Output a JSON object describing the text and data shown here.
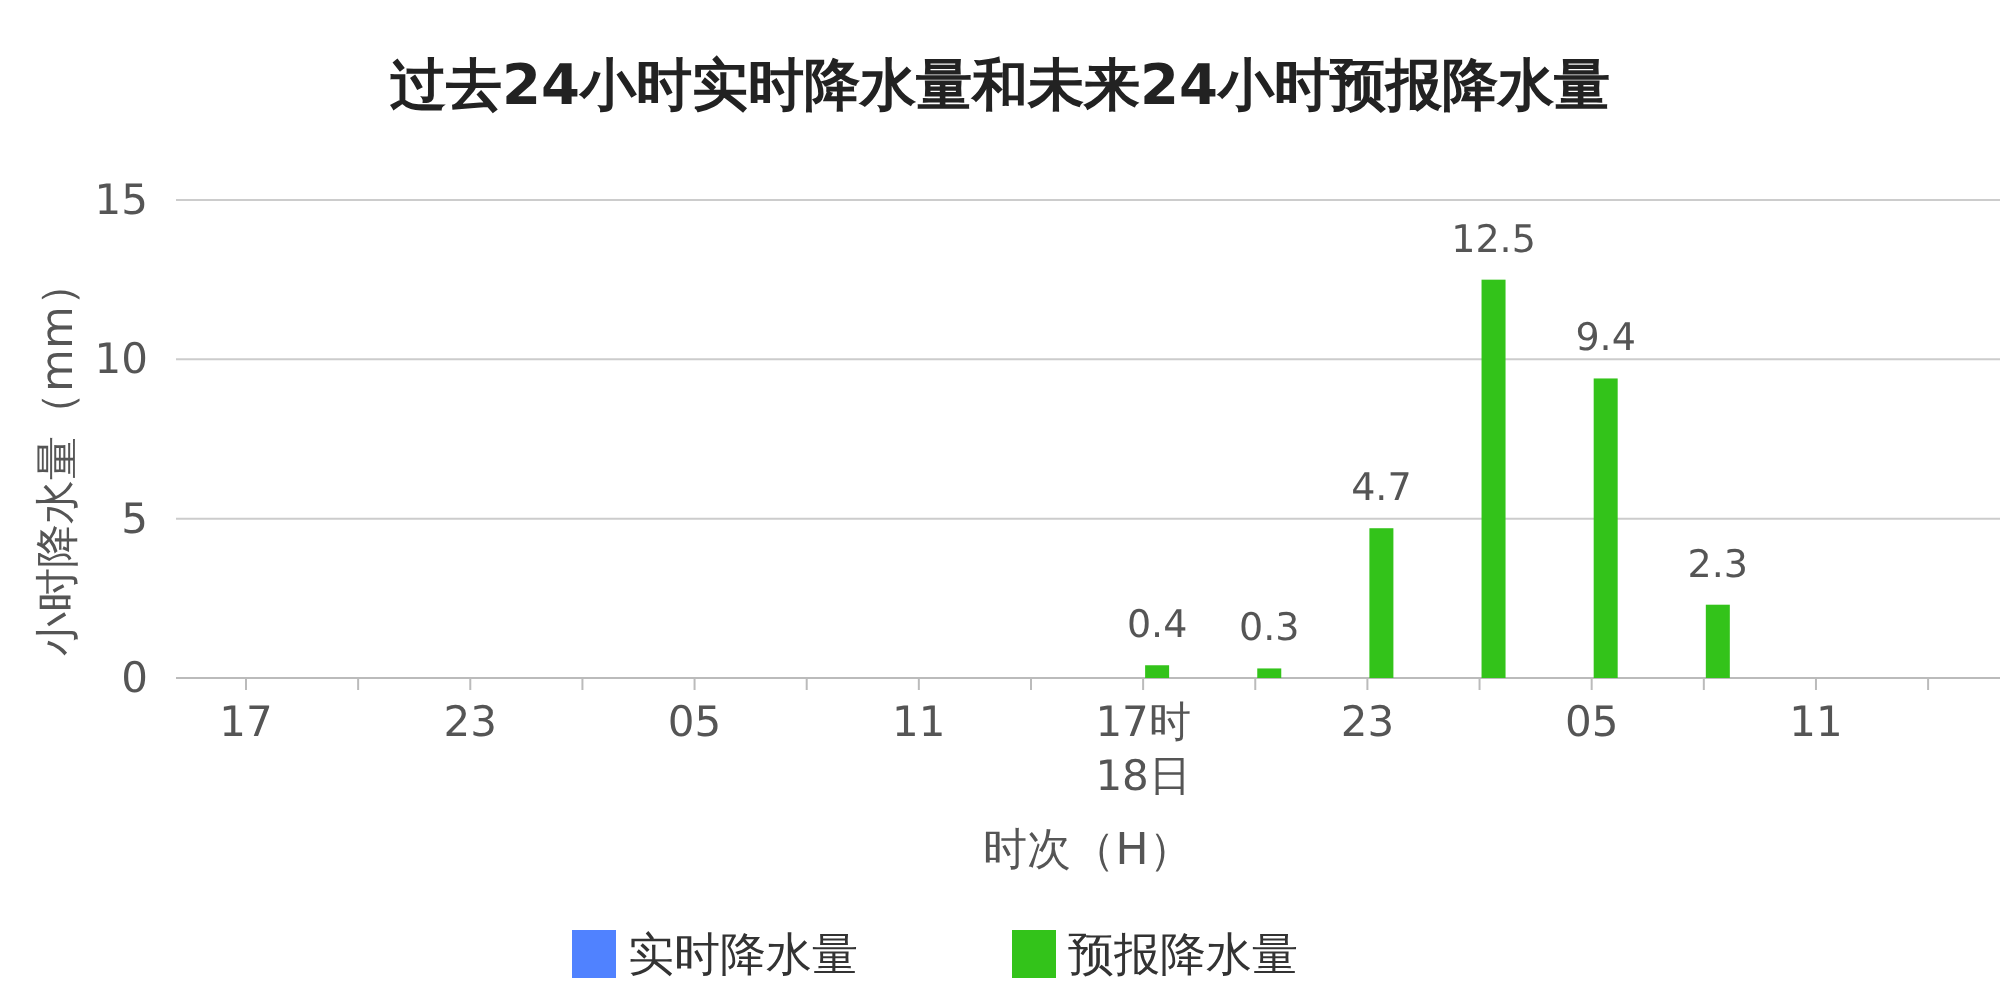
{
  "chart_data": {
    "type": "bar",
    "title": "过去24小时实时降水量和未来24小时预报降水量",
    "xlabel": "时次（H）",
    "ylabel": "小时降水量（mm）",
    "categories": [
      "17",
      null,
      "23",
      null,
      "05",
      null,
      "11",
      null,
      "17时\n18日",
      null,
      "23",
      null,
      "05",
      null,
      "11",
      null
    ],
    "series": [
      {
        "name": "实时降水量",
        "color": "#5082ff",
        "values": [
          null,
          null,
          null,
          null,
          null,
          null,
          null,
          null,
          null,
          null,
          null,
          null,
          null,
          null,
          null,
          null
        ]
      },
      {
        "name": "预报降水量",
        "color": "#33c31a",
        "values": [
          null,
          null,
          null,
          null,
          null,
          null,
          null,
          null,
          0.4,
          0.3,
          4.7,
          12.5,
          9.4,
          2.3,
          null,
          null
        ]
      }
    ],
    "ylim": [
      0,
      15
    ],
    "yticks": [
      0,
      5,
      10,
      15
    ],
    "grid": "y",
    "legend": "bottom",
    "data_labels": true
  }
}
